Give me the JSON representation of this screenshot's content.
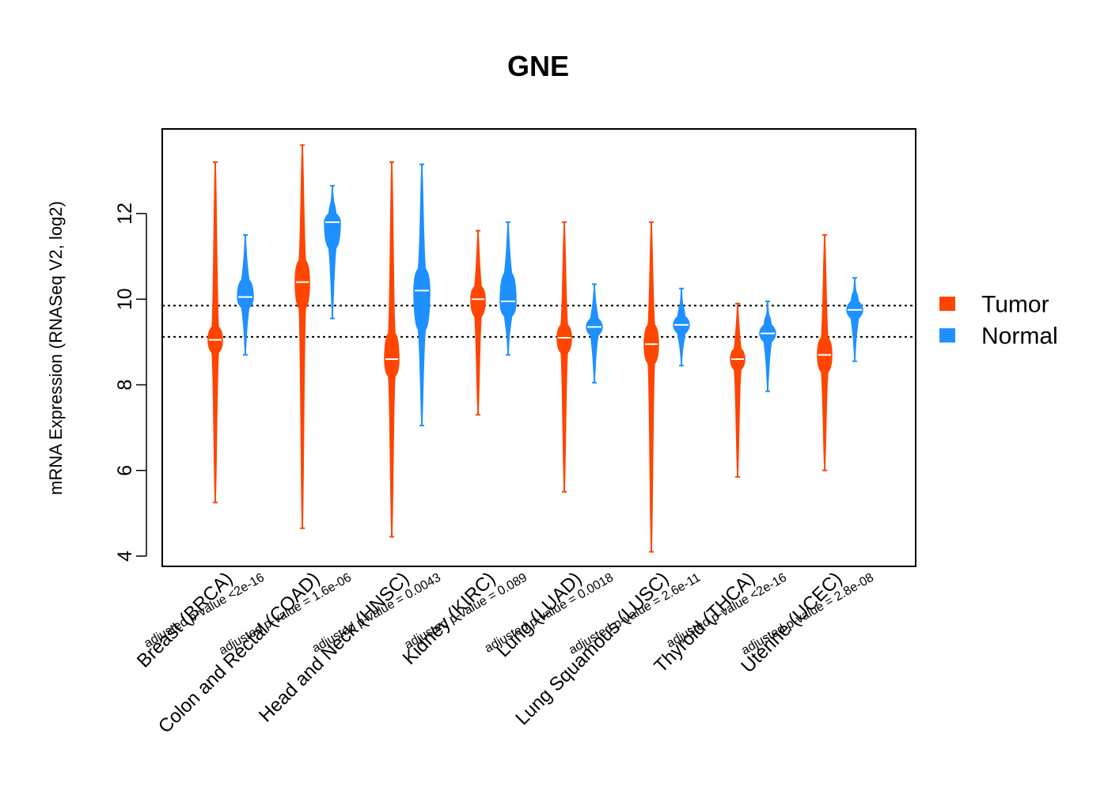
{
  "chart_data": {
    "type": "violin",
    "title": "GNE",
    "ylabel": "mRNA Expression (RNASeq V2, log2)",
    "xlabel": "",
    "ylim": [
      3.8,
      14.0
    ],
    "yticks": [
      4,
      6,
      8,
      10,
      12
    ],
    "reference_lines": [
      9.12,
      9.85
    ],
    "legend": {
      "position": "right",
      "entries": [
        {
          "name": "Tumor",
          "color": "#FF4500"
        },
        {
          "name": "Normal",
          "color": "#1E90FF"
        }
      ]
    },
    "categories": [
      {
        "label": "Breast (BRCA)",
        "pvalue_text": "adjusted p-value <2e-16",
        "tumor": {
          "median": 9.05,
          "min": 5.25,
          "max": 13.2,
          "q1": 8.75,
          "q3": 9.35
        },
        "normal": {
          "median": 10.05,
          "min": 8.7,
          "max": 11.5,
          "q1": 9.8,
          "q3": 10.45
        }
      },
      {
        "label": "Colon and Rectal (COAD)",
        "pvalue_text": "adjusted p-value = 1.6e-06",
        "tumor": {
          "median": 10.4,
          "min": 4.65,
          "max": 13.6,
          "q1": 9.8,
          "q3": 10.9
        },
        "normal": {
          "median": 11.8,
          "min": 9.55,
          "max": 12.65,
          "q1": 11.2,
          "q3": 12.0
        }
      },
      {
        "label": "Head and Neck (HNSC)",
        "pvalue_text": "adjusted p-value = 0.0043",
        "tumor": {
          "median": 8.6,
          "min": 4.45,
          "max": 13.2,
          "q1": 8.2,
          "q3": 9.2
        },
        "normal": {
          "median": 10.2,
          "min": 7.05,
          "max": 13.15,
          "q1": 9.3,
          "q3": 10.7
        }
      },
      {
        "label": "Kidney (KIRC)",
        "pvalue_text": "adjusted p-value = 0.089",
        "tumor": {
          "median": 10.0,
          "min": 7.3,
          "max": 11.6,
          "q1": 9.6,
          "q3": 10.3
        },
        "normal": {
          "median": 9.95,
          "min": 8.7,
          "max": 11.8,
          "q1": 9.6,
          "q3": 10.6
        }
      },
      {
        "label": "Lung (LUAD)",
        "pvalue_text": "adjusted p-value = 0.0018",
        "tumor": {
          "median": 9.1,
          "min": 5.5,
          "max": 11.8,
          "q1": 8.75,
          "q3": 9.4
        },
        "normal": {
          "median": 9.35,
          "min": 8.05,
          "max": 10.35,
          "q1": 9.15,
          "q3": 9.55
        }
      },
      {
        "label": "Lung Squamous (LUSC)",
        "pvalue_text": "adjusted p-value = 2.6e-11",
        "tumor": {
          "median": 8.95,
          "min": 4.1,
          "max": 11.8,
          "q1": 8.5,
          "q3": 9.4
        },
        "normal": {
          "median": 9.4,
          "min": 8.45,
          "max": 10.25,
          "q1": 9.2,
          "q3": 9.6
        }
      },
      {
        "label": "Thyroid (THCA)",
        "pvalue_text": "adjusted p-value <2e-16",
        "tumor": {
          "median": 8.6,
          "min": 5.85,
          "max": 9.9,
          "q1": 8.35,
          "q3": 8.85
        },
        "normal": {
          "median": 9.2,
          "min": 7.85,
          "max": 9.95,
          "q1": 9.0,
          "q3": 9.4
        }
      },
      {
        "label": "Uterine (UCEC)",
        "pvalue_text": "adjusted p-value = 2.8e-08",
        "tumor": {
          "median": 8.7,
          "min": 6.0,
          "max": 11.5,
          "q1": 8.3,
          "q3": 9.1
        },
        "normal": {
          "median": 9.75,
          "min": 8.55,
          "max": 10.5,
          "q1": 9.55,
          "q3": 9.95
        }
      }
    ]
  }
}
